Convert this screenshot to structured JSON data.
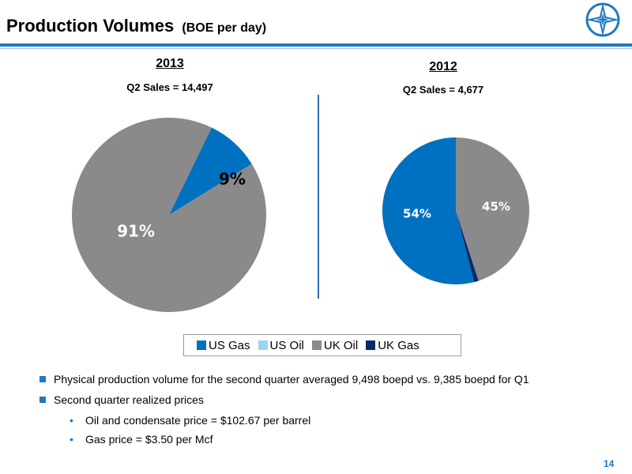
{
  "header": {
    "title": "Production Volumes",
    "subtitle": "(BOE per day)"
  },
  "colors": {
    "accent": "#1f78c1",
    "us_gas": "#0070c0",
    "us_oil": "#9dd3f5",
    "uk_oil": "#8a8a8a",
    "uk_gas": "#0b2a6b"
  },
  "chart_data": [
    {
      "type": "pie",
      "title": "2013",
      "subtitle": "Q2 Sales = 14,497",
      "categories": [
        "US Gas",
        "US Oil",
        "UK Oil",
        "UK Gas"
      ],
      "values": [
        9,
        0,
        91,
        0
      ],
      "labels": [
        "9%",
        "",
        "91%",
        ""
      ]
    },
    {
      "type": "pie",
      "title": "2012",
      "subtitle": "Q2 Sales = 4,677",
      "categories": [
        "US Gas",
        "US Oil",
        "UK Oil",
        "UK Gas"
      ],
      "values": [
        54,
        0,
        45,
        1
      ],
      "labels": [
        "54%",
        "",
        "45%",
        ""
      ]
    }
  ],
  "legend": {
    "placement": "bottom",
    "items": [
      "US Gas",
      "US Oil",
      "UK Oil",
      "UK Gas"
    ]
  },
  "bullets": [
    {
      "level": 1,
      "text": "Physical production volume for the second quarter averaged 9,498 boepd vs. 9,385 boepd for Q1"
    },
    {
      "level": 1,
      "text": "Second quarter realized prices"
    },
    {
      "level": 2,
      "text": "Oil and condensate price = $102.67 per barrel"
    },
    {
      "level": 2,
      "text": "Gas price = $3.50 per Mcf"
    }
  ],
  "page_number": "14"
}
